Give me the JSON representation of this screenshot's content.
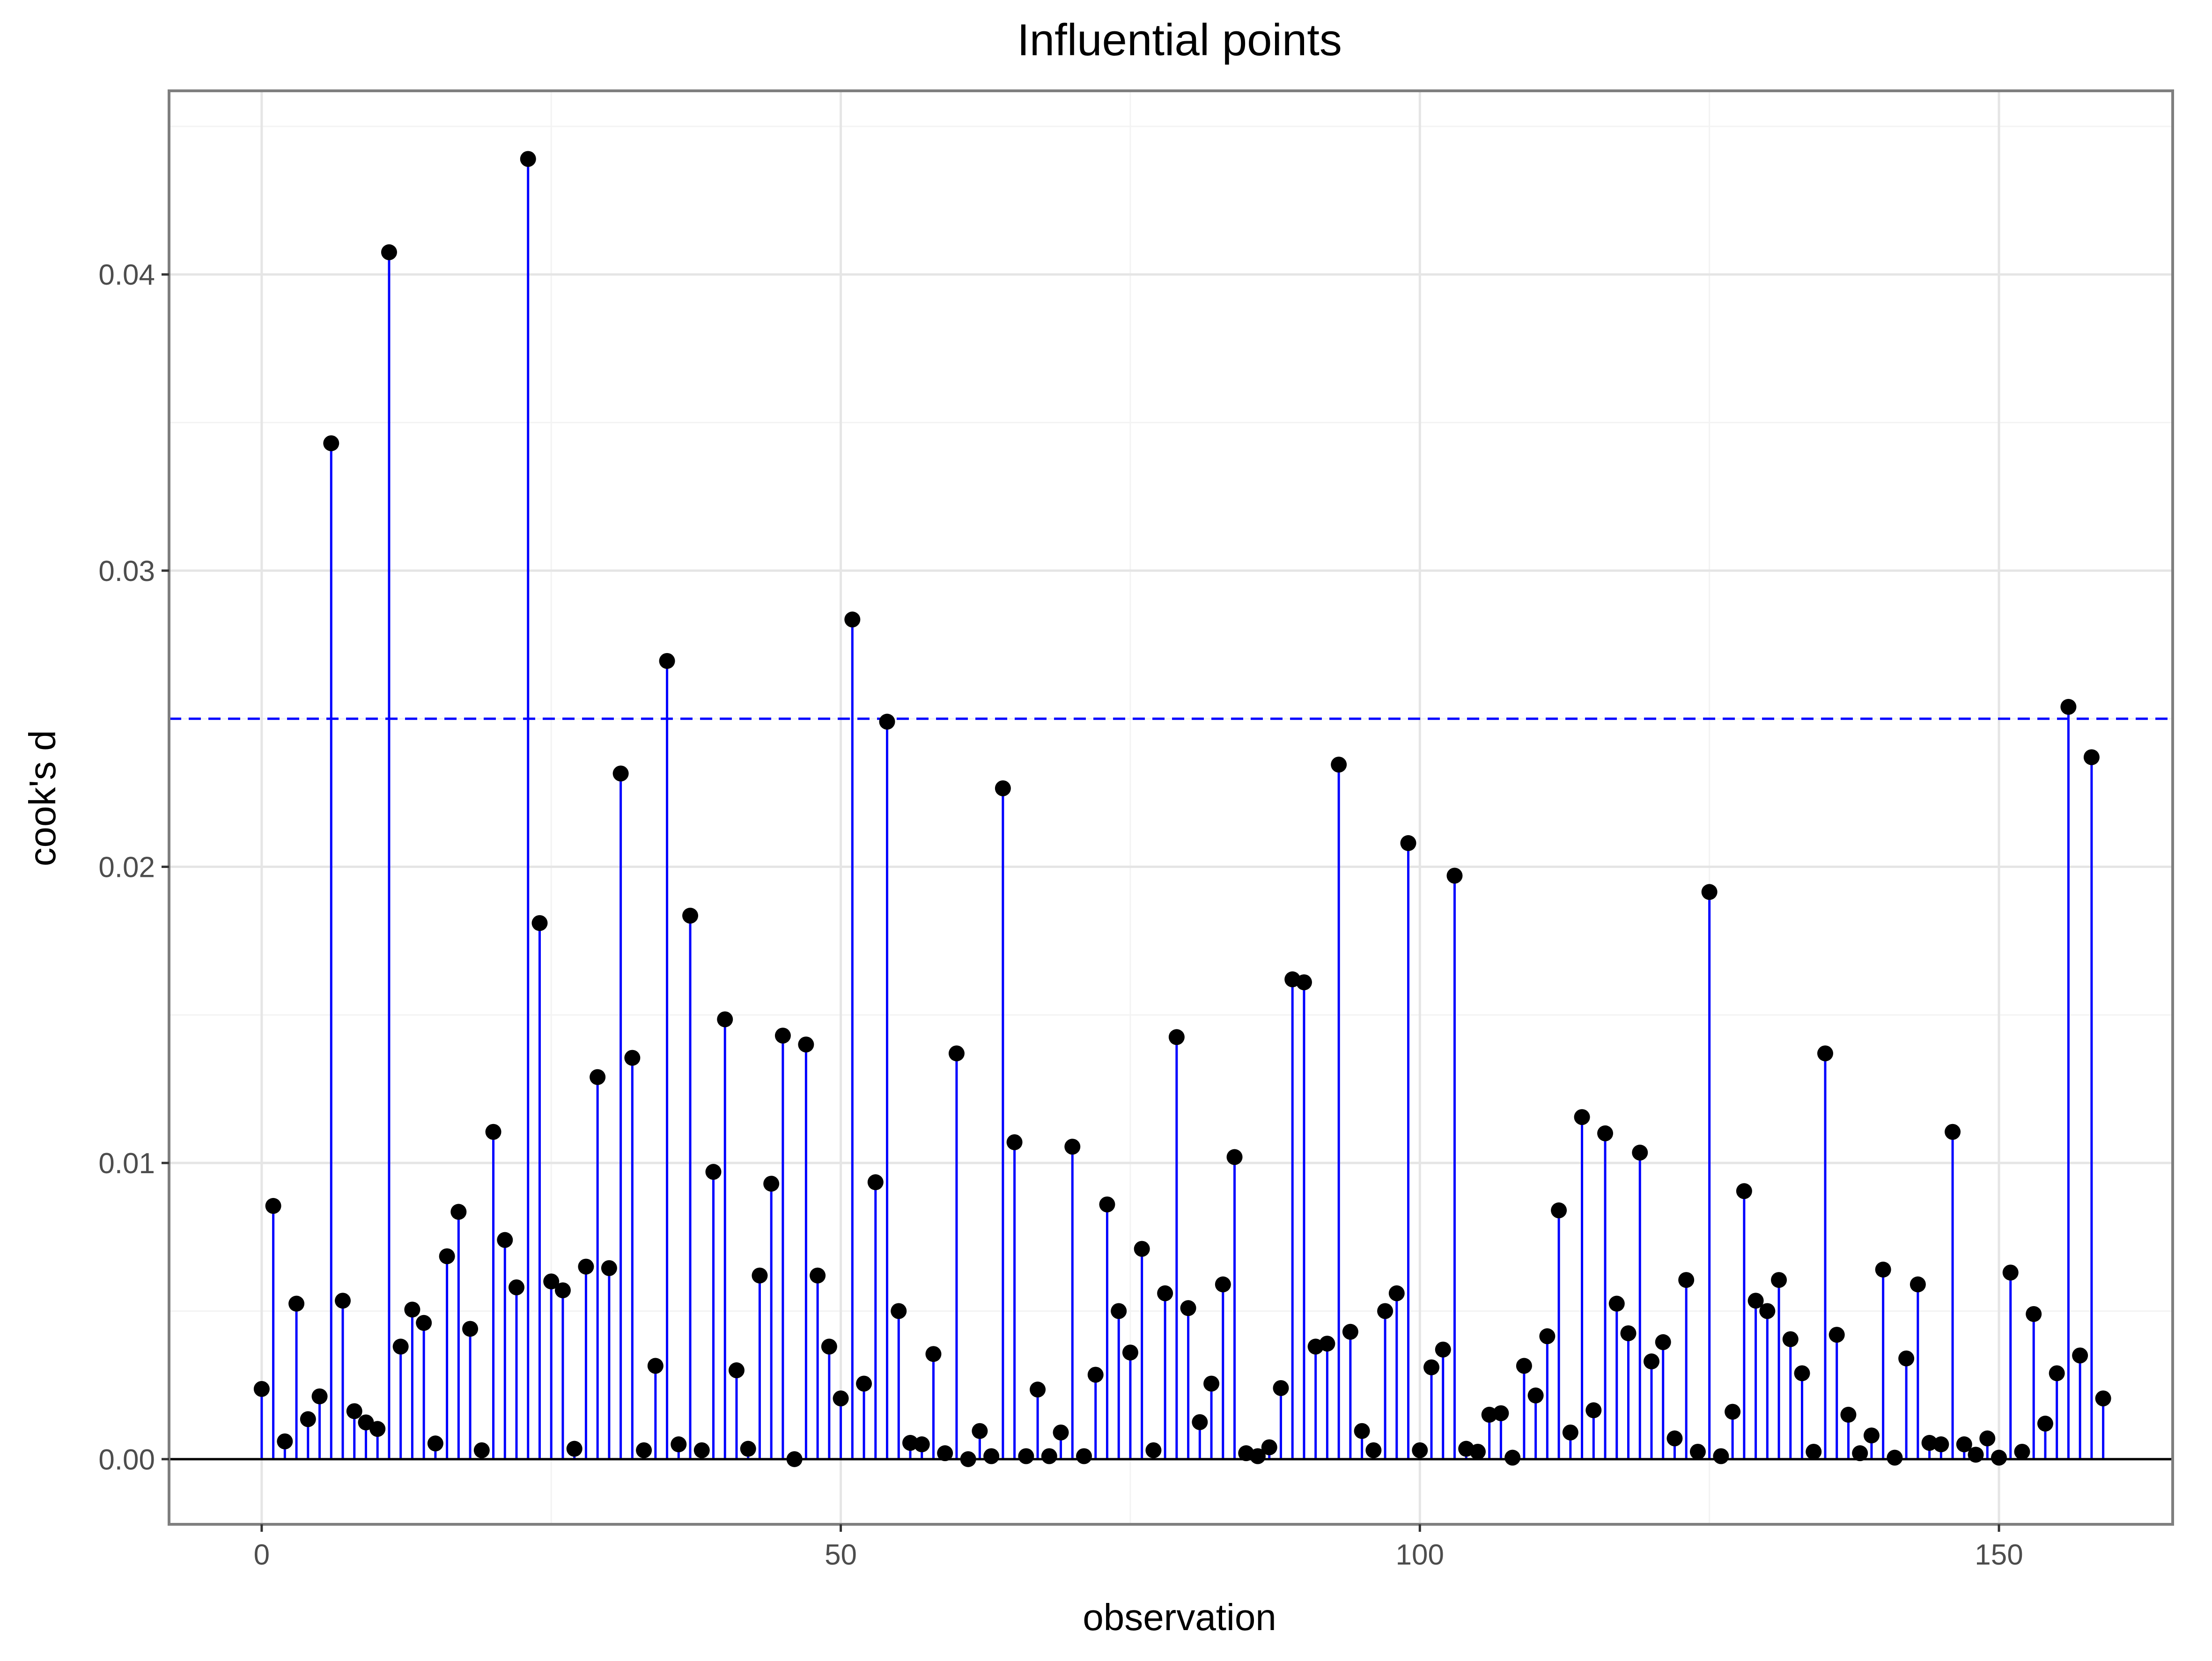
{
  "chart_data": {
    "type": "lollipop",
    "title": "Influential points",
    "xlabel": "observation",
    "ylabel": "cook's d",
    "xlim": [
      -8,
      165
    ],
    "ylim": [
      -0.0022,
      0.0462
    ],
    "x_ticks": [
      0,
      50,
      100,
      150
    ],
    "y_ticks": [
      0.0,
      0.01,
      0.02,
      0.03,
      0.04
    ],
    "x_tick_labels": [
      "0",
      "50",
      "100",
      "150"
    ],
    "y_tick_labels": [
      "0.00",
      "0.01",
      "0.02",
      "0.03",
      "0.04"
    ],
    "threshold": 0.025,
    "grid": true,
    "legend": "none",
    "colors": {
      "stem": "#0000ff",
      "point": "#000000",
      "threshold": "#0000ff",
      "baseline": "#000000",
      "grid_major": "#e5e5e5",
      "grid_minor": "#f3f3f3",
      "panel_border": "#7f7f7f"
    },
    "x": [
      0,
      1,
      2,
      3,
      4,
      5,
      6,
      7,
      8,
      9,
      10,
      11,
      12,
      13,
      14,
      15,
      16,
      17,
      18,
      19,
      20,
      21,
      22,
      23,
      24,
      25,
      26,
      27,
      28,
      29,
      30,
      31,
      32,
      33,
      34,
      35,
      36,
      37,
      38,
      39,
      40,
      41,
      42,
      43,
      44,
      45,
      46,
      47,
      48,
      49,
      50,
      51,
      52,
      53,
      54,
      55,
      56,
      57,
      58,
      59,
      60,
      61,
      62,
      63,
      64,
      65,
      66,
      67,
      68,
      69,
      70,
      71,
      72,
      73,
      74,
      75,
      76,
      77,
      78,
      79,
      80,
      81,
      82,
      83,
      84,
      85,
      86,
      87,
      88,
      89,
      90,
      91,
      92,
      93,
      94,
      95,
      96,
      97,
      98,
      99,
      100,
      101,
      102,
      103,
      104,
      105,
      106,
      107,
      108,
      109,
      110,
      111,
      112,
      113,
      114,
      115,
      116,
      117,
      118,
      119,
      120,
      121,
      122,
      123,
      124,
      125,
      126,
      127,
      128,
      129,
      130,
      131,
      132,
      133,
      134,
      135,
      136,
      137,
      138,
      139,
      140,
      141,
      142,
      143,
      144,
      145,
      146,
      147,
      148,
      149,
      150,
      151,
      152,
      153,
      154,
      155,
      156,
      157,
      158,
      159
    ],
    "values": [
      0.00237,
      0.00855,
      0.0006,
      0.00525,
      0.00135,
      0.00212,
      0.0343,
      0.00535,
      0.00162,
      0.00124,
      0.00102,
      0.04075,
      0.0038,
      0.00505,
      0.0046,
      0.00053,
      0.00685,
      0.00835,
      0.0044,
      0.0003,
      0.01105,
      0.0074,
      0.0058,
      0.0439,
      0.0181,
      0.006,
      0.0057,
      0.00035,
      0.0065,
      0.0129,
      0.00645,
      0.02315,
      0.01355,
      0.0003,
      0.00315,
      0.02695,
      0.0005,
      0.01835,
      0.0003,
      0.0097,
      0.01485,
      0.003,
      0.00035,
      0.0062,
      0.0093,
      0.0143,
      0.0,
      0.014,
      0.0062,
      0.0038,
      0.00205,
      0.02835,
      0.00255,
      0.00935,
      0.0249,
      0.005,
      0.00055,
      0.0005,
      0.00355,
      0.0002,
      0.0137,
      0.0,
      0.00095,
      0.0001,
      0.02265,
      0.0107,
      0.0001,
      0.00235,
      0.0001,
      0.0009,
      0.01055,
      0.0001,
      0.00285,
      0.0086,
      0.005,
      0.0036,
      0.0071,
      0.0003,
      0.0056,
      0.01425,
      0.0051,
      0.00125,
      0.00255,
      0.0059,
      0.0102,
      0.0002,
      0.0001,
      0.0004,
      0.0024,
      0.0162,
      0.0161,
      0.0038,
      0.0039,
      0.02345,
      0.0043,
      0.00095,
      0.0003,
      0.005,
      0.0056,
      0.0208,
      0.0003,
      0.0031,
      0.0037,
      0.0197,
      0.00035,
      0.00025,
      0.0015,
      0.00155,
      5e-05,
      0.00315,
      0.00215,
      0.00415,
      0.0084,
      0.0009,
      0.01155,
      0.00165,
      0.011,
      0.00525,
      0.00425,
      0.01035,
      0.0033,
      0.00395,
      0.0007,
      0.00605,
      0.00025,
      0.01915,
      0.0001,
      0.0016,
      0.00905,
      0.00535,
      0.005,
      0.00605,
      0.00405,
      0.0029,
      0.00025,
      0.0137,
      0.0042,
      0.0015,
      0.0002,
      0.0008,
      0.0064,
      5e-05,
      0.0034,
      0.0059,
      0.00055,
      0.0005,
      0.01105,
      0.0005,
      0.00015,
      0.0007,
      5e-05,
      0.0063,
      0.00025,
      0.0049,
      0.0012,
      0.0029,
      0.0254,
      0.0035,
      0.0237,
      0.00205
    ]
  }
}
